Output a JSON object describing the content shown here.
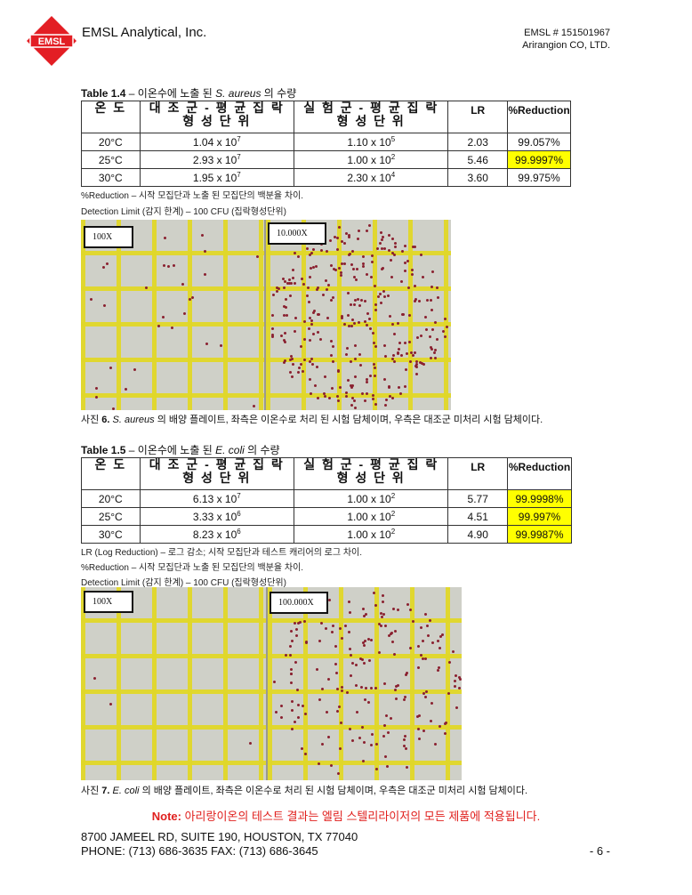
{
  "header": {
    "company": "EMSL Analytical, Inc.",
    "logo_text": "EMSL",
    "emsl_number": "EMSL # 151501967",
    "client": "Arirangion CO, LTD."
  },
  "colors": {
    "brand_red": "#e31e24",
    "highlight": "#ffff00",
    "note_red": "#e0201e",
    "grid_yellow": "#e1d728"
  },
  "table14": {
    "title_bold": "Table 1.4",
    "title_rest": " – 이온수에 노출 된 ",
    "organism": "S. aureus",
    "title_end": " 의 수량",
    "headers": [
      "온 도",
      "대 조 군 - 평 균 집 락 형 성 단 위",
      "실 험 군 - 평 균 집 락 형 성 단 위",
      "LR",
      "%Reduction"
    ],
    "rows": [
      {
        "temp": "20°C",
        "control": "1.04 x 10",
        "control_exp": "7",
        "test": "1.10 x 10",
        "test_exp": "5",
        "lr": "2.03",
        "reduction": "99.057%",
        "highlight": false
      },
      {
        "temp": "25°C",
        "control": "2.93 x 10",
        "control_exp": "7",
        "test": "1.00 x 10",
        "test_exp": "2",
        "lr": "5.46",
        "reduction": "99.9997%",
        "highlight": true
      },
      {
        "temp": "30°C",
        "control": "1.95 x 10",
        "control_exp": "7",
        "test": "2.30 x 10",
        "test_exp": "4",
        "lr": "3.60",
        "reduction": "99.975%",
        "highlight": false
      }
    ],
    "note1": "%Reduction – 시작 모집단과 노출 된 모집단의 백분율 차이.",
    "note2": "Detection Limit (감지 한계) – 100 CFU (집락형성단위)"
  },
  "photo6": {
    "left_label": "100X",
    "right_label": "10.000X",
    "caption_prefix": "사진 ",
    "caption_num": "6.",
    "organism": "S. aureus",
    "caption_rest": " 의 배양 플레이트, 좌측은 이온수로 처리 된 시험 담체이며, 우측은 대조군 미처리 시험 담체이다."
  },
  "table15": {
    "title_bold": "Table 1.5",
    "title_rest": " – 이온수에 노출 된 ",
    "organism": "E. coli",
    "title_end": " 의 수량",
    "headers": [
      "온 도",
      "대 조 군 - 평 균 집 락 형 성 단 위",
      "실 험 군 - 평 균 집 락 형 성 단 위",
      "LR",
      "%Reduction"
    ],
    "rows": [
      {
        "temp": "20°C",
        "control": "6.13 x 10",
        "control_exp": "7",
        "test": "1.00 x 10",
        "test_exp": "2",
        "lr": "5.77",
        "reduction": "99.9998%",
        "highlight": true
      },
      {
        "temp": "25°C",
        "control": "3.33 x 10",
        "control_exp": "6",
        "test": "1.00 x 10",
        "test_exp": "2",
        "lr": "4.51",
        "reduction": "99.997%",
        "highlight": true
      },
      {
        "temp": "30°C",
        "control": "8.23 x 10",
        "control_exp": "6",
        "test": "1.00 x 10",
        "test_exp": "2",
        "lr": "4.90",
        "reduction": "99.9987%",
        "highlight": true
      }
    ],
    "note0": "LR (Log Reduction) – 로그 감소; 시작 모집단과 테스트 캐리어의 로그 차이.",
    "note1": "%Reduction – 시작 모집단과 노출 된 모집단의 백분율 차이.",
    "note2": "Detection Limit (감지 한계) – 100 CFU (집락형성단위)"
  },
  "photo7": {
    "left_label": "100X",
    "right_label": "100.000X",
    "caption_prefix": "사진 ",
    "caption_num": "7.",
    "organism": "E. coli",
    "caption_rest": " 의 배양 플레이트, 좌측은 이온수로 처리 된 시험 담체이며, 우측은 대조군 미처리 시험 담체이다."
  },
  "footer": {
    "note_label": "Note:",
    "note_text": " 아리랑이온의 테스트 결과는 엘림 스텔리라이저의 모든 제품에 적용됩니다.",
    "address": "8700 JAMEEL RD, SUITE 190, HOUSTON, TX 77040",
    "phone": "PHONE: (713) 686-3635 FAX: (713) 686-3645",
    "page": "- 6 -"
  }
}
